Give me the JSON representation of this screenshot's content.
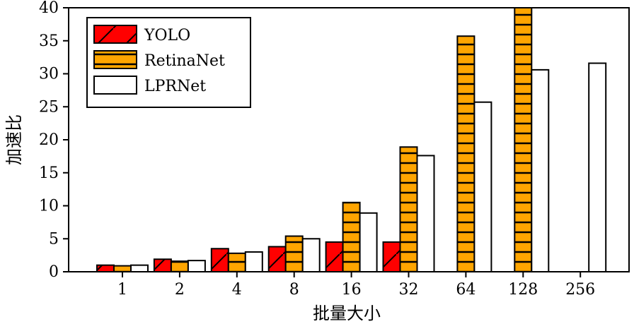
{
  "chart_data": {
    "type": "bar",
    "xlabel": "批量大小",
    "ylabel": "加速比",
    "categories": [
      "1",
      "2",
      "4",
      "8",
      "16",
      "32",
      "64",
      "128",
      "256"
    ],
    "ylim": [
      0,
      40
    ],
    "yticks": [
      0,
      5,
      10,
      15,
      20,
      25,
      30,
      35,
      40
    ],
    "grid": false,
    "legend_position": "top-left",
    "series": [
      {
        "name": "YOLO",
        "values": [
          1.0,
          1.9,
          3.5,
          3.8,
          4.5,
          4.5,
          null,
          null,
          null
        ],
        "color": "#ff0000",
        "pattern": "diagonal"
      },
      {
        "name": "RetinaNet",
        "values": [
          0.9,
          1.6,
          2.8,
          5.4,
          10.5,
          18.9,
          35.7,
          40.0,
          null
        ],
        "color": "#ffa500",
        "pattern": "horizontal"
      },
      {
        "name": "LPRNet",
        "values": [
          1.0,
          1.7,
          3.0,
          5.0,
          8.9,
          17.6,
          25.7,
          30.6,
          31.6
        ],
        "color": "#ffffff",
        "pattern": "none"
      }
    ]
  }
}
